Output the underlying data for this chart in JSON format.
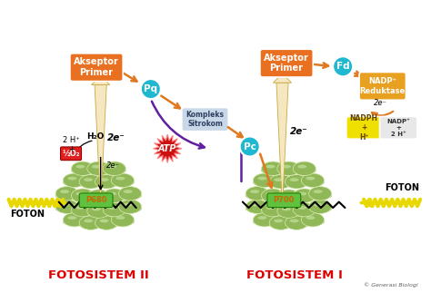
{
  "bg_color": "#ffffff",
  "fig_width": 4.74,
  "fig_height": 3.23,
  "dpi": 100,
  "fotosistem2_label": "FOTOSISTEM II",
  "fotosistem1_label": "FOTOSISTEM I",
  "akseptor_primer": "Akseptor\nPrimer",
  "akseptor_color": "#e87020",
  "pq_label": "Pq",
  "pc_label": "Pc",
  "fd_label": "Fd",
  "p680_label": "P680",
  "p700_label": "P700",
  "atp_label": "ATP",
  "nadp_reduktase": "NADP⁺\nReduktase",
  "nadph_label": "NADPH\n+\nH⁺",
  "nadp_label": "NADP⁺\n+\n2 H⁺",
  "h2o_label": "H₂O",
  "o2_label": "½O₂",
  "foton_label": "FOTON",
  "electron_label": "2e⁻",
  "hplus_label": "2 H⁺\n+",
  "kompleks_sitrokom": "Kompleks\nSitrokom",
  "cyan_color": "#20b8d0",
  "orange_color": "#e07820",
  "yellow_color": "#f5c518",
  "red_color": "#e02020",
  "green_cell_color": "#90b858",
  "arrow_shaft_color": "#f5e8c0",
  "arrow_edge_color": "#c8a840",
  "label_color": "#dd0000",
  "nadp_box_color": "#e8a020",
  "nadph_box_color": "#f0e000",
  "white": "#ffffff",
  "black": "#000000",
  "purple": "#6020a0",
  "foton_color": "#e8d800",
  "atp_color": "#cc0000",
  "cell_rim_color": "#c8d8a0",
  "cell_shadow_color": "#b0c890"
}
